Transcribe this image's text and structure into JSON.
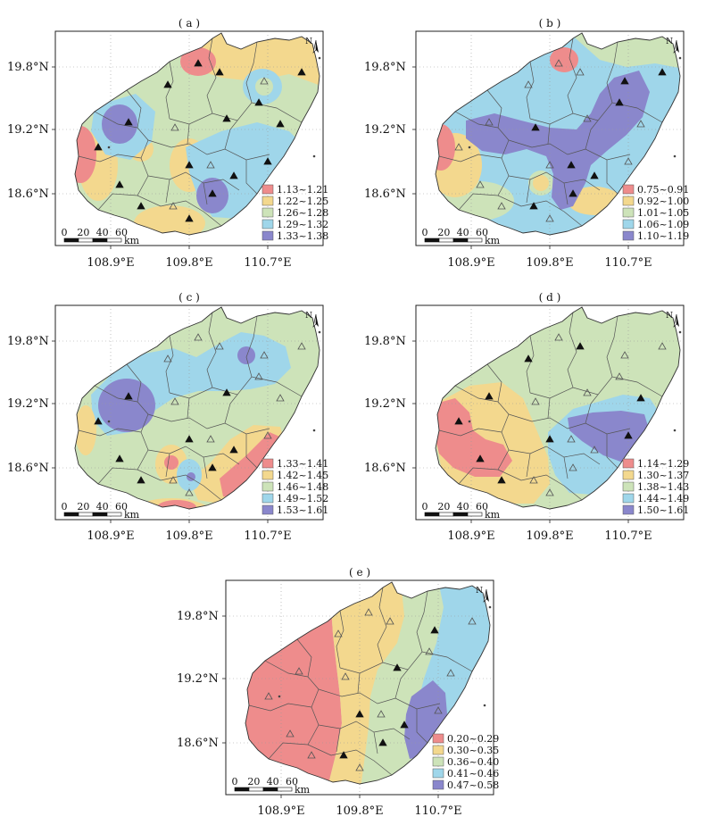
{
  "figure": {
    "type": "map",
    "region": "Hainan Island",
    "latitude_labels": [
      "19.8°N",
      "19.2°N",
      "18.6°N"
    ],
    "longitude_labels": [
      "108.9°E",
      "109.8°E",
      "110.7°E"
    ],
    "scale_bar": {
      "ticks": [
        "0",
        "20",
        "40",
        "60"
      ],
      "unit": "km"
    },
    "north_label": "N",
    "symbols": [
      "filled-triangle-station",
      "open-triangle-station"
    ]
  },
  "panels": [
    {
      "label": "( a )",
      "legend": [
        {
          "range": "1.13~1.21",
          "color": "#ee8c8c"
        },
        {
          "range": "1.22~1.25",
          "color": "#f3d88e"
        },
        {
          "range": "1.26~1.28",
          "color": "#cde3b9"
        },
        {
          "range": "1.29~1.32",
          "color": "#9fd6ea"
        },
        {
          "range": "1.33~1.38",
          "color": "#8a87cc"
        }
      ]
    },
    {
      "label": "( b )",
      "legend": [
        {
          "range": "0.75~0.91",
          "color": "#ee8c8c"
        },
        {
          "range": "0.92~1.00",
          "color": "#f3d88e"
        },
        {
          "range": "1.01~1.05",
          "color": "#cde3b9"
        },
        {
          "range": "1.06~1.09",
          "color": "#9fd6ea"
        },
        {
          "range": "1.10~1.19",
          "color": "#8a87cc"
        }
      ]
    },
    {
      "label": "( c )",
      "legend": [
        {
          "range": "1.33~1.41",
          "color": "#ee8c8c"
        },
        {
          "range": "1.42~1.45",
          "color": "#f3d88e"
        },
        {
          "range": "1.46~1.48",
          "color": "#cde3b9"
        },
        {
          "range": "1.49~1.52",
          "color": "#9fd6ea"
        },
        {
          "range": "1.53~1.61",
          "color": "#8a87cc"
        }
      ]
    },
    {
      "label": "( d )",
      "legend": [
        {
          "range": "1.14~1.29",
          "color": "#ee8c8c"
        },
        {
          "range": "1.30~1.37",
          "color": "#f3d88e"
        },
        {
          "range": "1.38~1.43",
          "color": "#cde3b9"
        },
        {
          "range": "1.44~1.49",
          "color": "#9fd6ea"
        },
        {
          "range": "1.50~1.61",
          "color": "#8a87cc"
        }
      ]
    },
    {
      "label": "( e )",
      "legend": [
        {
          "range": "0.20~0.29",
          "color": "#ee8c8c"
        },
        {
          "range": "0.30~0.35",
          "color": "#f3d88e"
        },
        {
          "range": "0.36~0.40",
          "color": "#cde3b9"
        },
        {
          "range": "0.41~0.46",
          "color": "#9fd6ea"
        },
        {
          "range": "0.47~0.58",
          "color": "#8a87cc"
        }
      ]
    }
  ]
}
